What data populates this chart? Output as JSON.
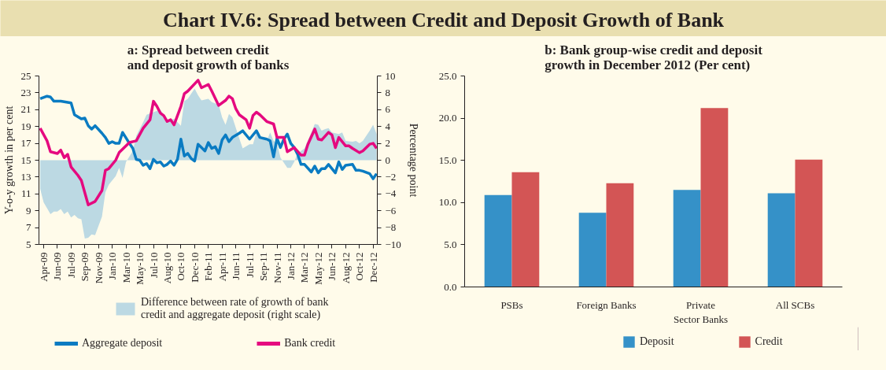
{
  "chart_data": [
    {
      "type": "other",
      "title": "Chart IV.6: Spread between Credit and Deposit Growth of Bank"
    },
    {
      "type": "line",
      "title": "a: Spread between credit and deposit growth of banks",
      "ylabel": "Y-o-y growth in per cent",
      "y2label": "Percentage point",
      "ylim": [
        5,
        25
      ],
      "yticks": [
        5,
        7,
        9,
        11,
        13,
        15,
        17,
        19,
        21,
        23,
        25
      ],
      "y2lim": [
        -10,
        10
      ],
      "y2ticks": [
        -10,
        -8,
        -6,
        -4,
        -2,
        0,
        2,
        4,
        6,
        8,
        10
      ],
      "xlim": [
        "2009-03-22",
        "2012-12-31"
      ],
      "xticks": [
        {
          "value": "2009-04-10",
          "label": "Apr-09"
        },
        {
          "value": "2009-06-05",
          "label": "Jun-09"
        },
        {
          "value": "2009-07-31",
          "label": "Jul-09"
        },
        {
          "value": "2009-09-25",
          "label": "Sep-09"
        },
        {
          "value": "2009-11-20",
          "label": "Nov-09"
        },
        {
          "value": "2010-01-15",
          "label": "Jan-10"
        },
        {
          "value": "2010-03-12",
          "label": "Mar-10"
        },
        {
          "value": "2010-05-07",
          "label": "May-10"
        },
        {
          "value": "2010-07-02",
          "label": "Jul-10"
        },
        {
          "value": "2010-08-27",
          "label": "Aug-10"
        },
        {
          "value": "2010-10-22",
          "label": "Oct-10"
        },
        {
          "value": "2010-12-17",
          "label": "Dec-10"
        },
        {
          "value": "2011-02-11",
          "label": "Feb-11"
        },
        {
          "value": "2011-04-08",
          "label": "Apr-11"
        },
        {
          "value": "2011-06-03",
          "label": "Jun-11"
        },
        {
          "value": "2011-07-29",
          "label": "Jul-11"
        },
        {
          "value": "2011-09-23",
          "label": "Sep-11"
        },
        {
          "value": "2011-11-18",
          "label": "Nov-11"
        },
        {
          "value": "2012-01-13",
          "label": "Jan-12"
        },
        {
          "value": "2012-03-09",
          "label": "Mar-12"
        },
        {
          "value": "2012-05-04",
          "label": "May-12"
        },
        {
          "value": "2012-06-29",
          "label": "Jun-12"
        },
        {
          "value": "2012-08-24",
          "label": "Aug-12"
        },
        {
          "value": "2012-10-19",
          "label": "Oct-12"
        },
        {
          "value": "2012-12-14",
          "label": "Dec-12"
        }
      ],
      "legend": "bottom",
      "grid": false,
      "series": [
        {
          "name": "Difference between rate of growth of bank credit and aggregate deposit (right scale)",
          "type": "area",
          "axis": "y2",
          "color": "#bcd9e3",
          "x": [
            "2009-03-27",
            "2009-04-10",
            "2009-05-08",
            "2009-05-22",
            "2009-06-05",
            "2009-06-19",
            "2009-07-03",
            "2009-07-17",
            "2009-07-31",
            "2009-08-14",
            "2009-08-28",
            "2009-09-11",
            "2009-09-25",
            "2009-10-09",
            "2009-10-23",
            "2009-11-06",
            "2009-12-04",
            "2009-12-18",
            "2010-01-01",
            "2010-01-29",
            "2010-02-12",
            "2010-02-26",
            "2010-03-12",
            "2010-04-09",
            "2010-04-23",
            "2010-05-21",
            "2010-06-04",
            "2010-07-02",
            "2010-07-30",
            "2010-08-27",
            "2010-09-24",
            "2010-10-08",
            "2010-10-22",
            "2010-11-05",
            "2010-11-19",
            "2010-12-17",
            "2010-12-31",
            "2011-01-14",
            "2011-02-11",
            "2011-02-25",
            "2011-03-25",
            "2011-04-08",
            "2011-04-22",
            "2011-05-06",
            "2011-05-20",
            "2011-06-17",
            "2011-07-01",
            "2011-07-29",
            "2011-08-12",
            "2011-08-26",
            "2011-09-09",
            "2011-10-07",
            "2011-10-21",
            "2011-11-04",
            "2011-11-18",
            "2011-12-02",
            "2011-12-30",
            "2012-01-13",
            "2012-01-27",
            "2012-02-10",
            "2012-03-09",
            "2012-04-06",
            "2012-04-20",
            "2012-05-04",
            "2012-05-18",
            "2012-06-01",
            "2012-06-15",
            "2012-06-29",
            "2012-07-27",
            "2012-08-10",
            "2012-08-24",
            "2012-09-21",
            "2012-10-05",
            "2012-10-19",
            "2012-11-02",
            "2012-11-30",
            "2012-12-14",
            "2012-12-28"
          ],
          "values": [
            -3.4,
            -5.0,
            -6.4,
            -6.1,
            -6.1,
            -5.8,
            -6.4,
            -6.1,
            -6.8,
            -6.5,
            -6.9,
            -7.0,
            -9.3,
            -9.2,
            -8.8,
            -8.9,
            -6.7,
            -3.8,
            -2.9,
            -1.9,
            -0.9,
            -2.1,
            -0.2,
            1.1,
            2.9,
            4.5,
            5.4,
            5.7,
            6.0,
            4.7,
            4.9,
            4.5,
            4.1,
            7.0,
            7.3,
            8.5,
            7.7,
            7.1,
            7.3,
            6.9,
            6.6,
            5.1,
            4.2,
            5.5,
            5.1,
            2.6,
            1.4,
            1.9,
            1.9,
            3.3,
            2.9,
            2.3,
            3.3,
            2.3,
            2.0,
            0.3,
            -0.9,
            -0.9,
            -0.2,
            0.8,
            1.4,
            3.3,
            4.3,
            4.2,
            3.5,
            3.7,
            3.8,
            3.3,
            3.1,
            3.3,
            2.3,
            2.2,
            2.3,
            2.0,
            2.3,
            3.5,
            4.2,
            3.1
          ]
        },
        {
          "name": "Aggregate deposit",
          "type": "line",
          "color": "#0a7bc2",
          "x": [
            "2009-03-27",
            "2009-04-24",
            "2009-05-08",
            "2009-05-22",
            "2009-06-19",
            "2009-07-31",
            "2009-08-14",
            "2009-09-11",
            "2009-09-25",
            "2009-10-09",
            "2009-10-23",
            "2009-11-06",
            "2009-12-04",
            "2009-12-18",
            "2010-01-01",
            "2010-01-15",
            "2010-01-29",
            "2010-02-12",
            "2010-02-26",
            "2010-03-26",
            "2010-04-09",
            "2010-04-23",
            "2010-05-07",
            "2010-05-21",
            "2010-06-04",
            "2010-06-18",
            "2010-07-02",
            "2010-07-16",
            "2010-07-30",
            "2010-08-13",
            "2010-08-27",
            "2010-09-10",
            "2010-09-24",
            "2010-10-08",
            "2010-10-22",
            "2010-11-05",
            "2010-11-19",
            "2010-12-03",
            "2010-12-17",
            "2010-12-31",
            "2011-01-28",
            "2011-02-11",
            "2011-02-25",
            "2011-03-11",
            "2011-03-25",
            "2011-04-08",
            "2011-04-22",
            "2011-05-06",
            "2011-05-20",
            "2011-06-17",
            "2011-07-01",
            "2011-07-29",
            "2011-08-26",
            "2011-09-09",
            "2011-10-07",
            "2011-10-21",
            "2011-11-04",
            "2011-11-18",
            "2011-12-02",
            "2011-12-16",
            "2011-12-30",
            "2012-01-13",
            "2012-01-27",
            "2012-02-10",
            "2012-02-24",
            "2012-03-09",
            "2012-04-06",
            "2012-04-20",
            "2012-05-04",
            "2012-05-18",
            "2012-06-01",
            "2012-06-15",
            "2012-07-13",
            "2012-07-27",
            "2012-08-10",
            "2012-08-24",
            "2012-09-21",
            "2012-10-05",
            "2012-10-19",
            "2012-11-02",
            "2012-11-30",
            "2012-12-14",
            "2012-12-28"
          ],
          "values": [
            22.3,
            22.6,
            22.5,
            22.0,
            22.0,
            21.8,
            20.4,
            19.9,
            20.0,
            19.1,
            18.7,
            19.1,
            18.2,
            17.7,
            17.0,
            17.2,
            17.0,
            17.0,
            18.3,
            17.0,
            16.4,
            15.1,
            15.0,
            14.4,
            14.6,
            14.0,
            15.1,
            14.7,
            14.8,
            14.3,
            14.5,
            14.9,
            14.4,
            15.1,
            17.5,
            15.5,
            15.8,
            15.2,
            14.9,
            16.9,
            16.1,
            17.1,
            16.4,
            16.6,
            15.8,
            17.4,
            18.0,
            17.2,
            17.7,
            18.2,
            18.5,
            17.5,
            18.5,
            17.7,
            17.5,
            17.3,
            15.4,
            17.6,
            16.5,
            17.5,
            18.1,
            17.0,
            16.5,
            15.7,
            14.5,
            14.5,
            13.6,
            14.3,
            13.5,
            14.0,
            14.0,
            14.5,
            13.5,
            14.8,
            13.9,
            14.4,
            14.5,
            13.8,
            13.8,
            13.7,
            13.4,
            12.8,
            13.4
          ]
        },
        {
          "name": "Bank credit",
          "type": "line",
          "color": "#e5097f",
          "x": [
            "2009-03-27",
            "2009-04-24",
            "2009-05-08",
            "2009-06-05",
            "2009-06-19",
            "2009-07-03",
            "2009-07-17",
            "2009-07-31",
            "2009-08-28",
            "2009-09-11",
            "2009-10-09",
            "2009-11-06",
            "2009-12-04",
            "2009-12-18",
            "2010-01-01",
            "2010-01-29",
            "2010-02-12",
            "2010-03-26",
            "2010-04-23",
            "2010-05-21",
            "2010-06-18",
            "2010-07-02",
            "2010-07-16",
            "2010-07-30",
            "2010-08-13",
            "2010-08-27",
            "2010-09-10",
            "2010-09-24",
            "2010-10-22",
            "2010-11-05",
            "2010-11-19",
            "2010-12-31",
            "2011-01-14",
            "2011-02-11",
            "2011-02-25",
            "2011-03-25",
            "2011-04-22",
            "2011-05-06",
            "2011-05-20",
            "2011-06-03",
            "2011-06-17",
            "2011-07-15",
            "2011-07-29",
            "2011-08-12",
            "2011-08-26",
            "2011-09-09",
            "2011-10-07",
            "2011-11-04",
            "2011-11-18",
            "2011-12-16",
            "2011-12-30",
            "2012-01-27",
            "2012-02-24",
            "2012-03-09",
            "2012-03-23",
            "2012-04-20",
            "2012-05-04",
            "2012-05-18",
            "2012-06-15",
            "2012-06-29",
            "2012-07-13",
            "2012-07-27",
            "2012-08-24",
            "2012-09-07",
            "2012-09-21",
            "2012-10-19",
            "2012-11-02",
            "2012-11-30",
            "2012-12-14",
            "2012-12-28"
          ],
          "values": [
            18.8,
            17.3,
            16.0,
            15.8,
            16.2,
            15.3,
            15.7,
            14.2,
            13.2,
            12.6,
            9.7,
            10.1,
            11.4,
            13.8,
            14.0,
            15.0,
            15.9,
            17.1,
            17.3,
            18.8,
            19.8,
            22.0,
            21.4,
            20.6,
            20.3,
            19.6,
            19.8,
            19.2,
            21.4,
            22.9,
            23.2,
            24.5,
            23.6,
            24.0,
            23.2,
            21.5,
            22.1,
            22.6,
            22.3,
            21.1,
            20.4,
            19.8,
            18.8,
            20.3,
            20.7,
            20.4,
            19.6,
            19.3,
            17.7,
            17.7,
            16.0,
            16.5,
            15.6,
            15.6,
            16.9,
            18.7,
            17.5,
            17.4,
            18.3,
            18.0,
            16.5,
            17.7,
            16.7,
            16.7,
            16.4,
            15.9,
            16.1,
            16.9,
            17.0,
            16.4
          ]
        }
      ]
    },
    {
      "type": "bar",
      "title": "b: Bank group-wise credit and deposit growth in December 2012 (Per cent)",
      "categories": [
        "PSBs",
        "Foreign Banks",
        "Private Sector Banks",
        "All SCBs"
      ],
      "ylim": [
        0,
        25
      ],
      "yticks": [
        {
          "value": 0,
          "label": "0.0"
        },
        {
          "value": 5,
          "label": "5.0"
        },
        {
          "value": 10,
          "label": "10.0"
        },
        {
          "value": 15,
          "label": "15.0"
        },
        {
          "value": 20,
          "label": "20.0"
        },
        {
          "value": 25,
          "label": "25.0"
        }
      ],
      "legend": "bottom",
      "grid": false,
      "series": [
        {
          "name": "Deposit",
          "color": "#3591c8",
          "values": [
            10.9,
            8.8,
            11.5,
            11.1
          ]
        },
        {
          "name": "Credit",
          "color": "#d35555",
          "values": [
            13.6,
            12.3,
            21.2,
            15.1
          ]
        }
      ]
    }
  ]
}
